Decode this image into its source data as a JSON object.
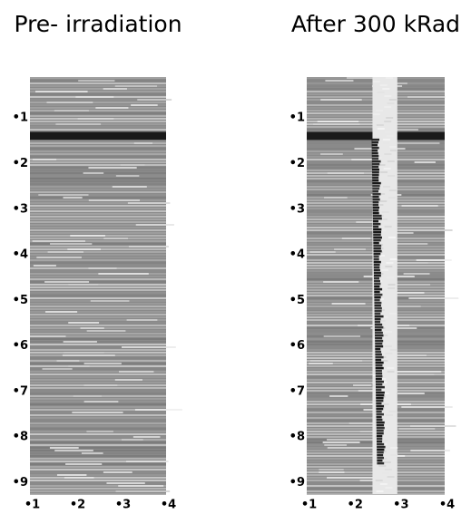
{
  "chart_data": [
    {
      "type": "image",
      "title": "Pre- irradiation",
      "xlim": [
        0.95,
        3.95
      ],
      "ylim": [
        0.1,
        9.25
      ],
      "xticks": [
        {
          "value": 1,
          "label": "•1"
        },
        {
          "value": 2,
          "label": "•2"
        },
        {
          "value": 3,
          "label": "•3"
        },
        {
          "value": 4,
          "label": "•4"
        }
      ],
      "yticks": [
        {
          "value": 1,
          "label": "•1"
        },
        {
          "value": 2,
          "label": "•2"
        },
        {
          "value": 3,
          "label": "•3"
        },
        {
          "value": 4,
          "label": "•4"
        },
        {
          "value": 5,
          "label": "•5"
        },
        {
          "value": 6,
          "label": "•6"
        },
        {
          "value": 7,
          "label": "•7"
        },
        {
          "value": 8,
          "label": "•8"
        },
        {
          "value": 9,
          "label": "•9"
        }
      ]
    },
    {
      "type": "image",
      "title": "After 300 kRad",
      "xlim": [
        0.95,
        3.95
      ],
      "ylim": [
        0.1,
        9.25
      ],
      "xticks": [
        {
          "value": 1,
          "label": "•1"
        },
        {
          "value": 2,
          "label": "•2"
        },
        {
          "value": 3,
          "label": "•3"
        },
        {
          "value": 4,
          "label": "•4"
        }
      ],
      "yticks": [
        {
          "value": 1,
          "label": "•1"
        },
        {
          "value": 2,
          "label": "•2"
        },
        {
          "value": 3,
          "label": "•3"
        },
        {
          "value": 4,
          "label": "•4"
        },
        {
          "value": 5,
          "label": "•5"
        },
        {
          "value": 6,
          "label": "•6"
        },
        {
          "value": 7,
          "label": "•7"
        },
        {
          "value": 8,
          "label": "•8"
        },
        {
          "value": 9,
          "label": "•9"
        }
      ]
    }
  ]
}
